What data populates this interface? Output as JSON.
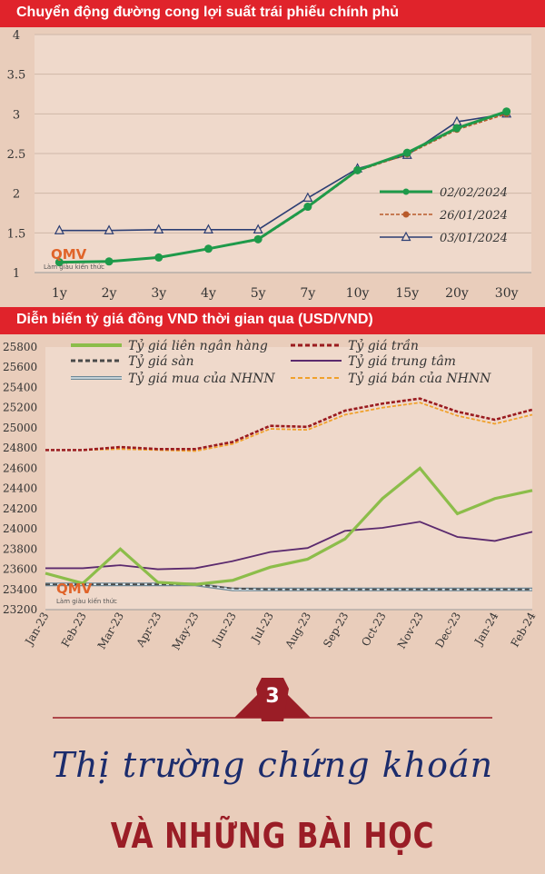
{
  "banner1": {
    "title": "Chuyển động đường cong lợi suất trái phiếu chính phủ"
  },
  "banner2": {
    "title": "Diễn biến tỷ giá đồng VND thời gian qua (USD/VND)"
  },
  "watermark": {
    "brand": "QMV",
    "tagline": "Làm giàu kiến thức"
  },
  "section3": {
    "number": "3",
    "title_script": "Thị trường chứng khoán",
    "title_caps": "VÀ NHỮNG BÀI HỌC"
  },
  "chart_data": [
    {
      "type": "line",
      "title": "Chuyển động đường cong lợi suất trái phiếu chính phủ",
      "categories": [
        "1y",
        "2y",
        "3y",
        "4y",
        "5y",
        "7y",
        "10y",
        "15y",
        "20y",
        "30y"
      ],
      "ylim": [
        1,
        4
      ],
      "yticks": [
        "1",
        "1.5",
        "2",
        "2.5",
        "3",
        "3.5",
        "4"
      ],
      "grid": true,
      "legend_position": "right",
      "series": [
        {
          "name": "02/02/2024",
          "color": "#1e9a4a",
          "marker": "circle",
          "style": "solid",
          "values": [
            1.13,
            1.14,
            1.19,
            1.3,
            1.42,
            1.83,
            2.29,
            2.51,
            2.82,
            3.03
          ]
        },
        {
          "name": "26/01/2024",
          "color": "#b85a2a",
          "marker": "circle",
          "style": "dashed",
          "values": [
            1.12,
            1.14,
            1.19,
            1.3,
            1.41,
            1.82,
            2.28,
            2.49,
            2.8,
            3.0
          ]
        },
        {
          "name": "03/01/2024",
          "color": "#2c3e73",
          "marker": "triangle",
          "style": "solid",
          "values": [
            1.53,
            1.53,
            1.54,
            1.54,
            1.54,
            1.94,
            2.31,
            2.48,
            2.9,
            3.0
          ]
        }
      ]
    },
    {
      "type": "line",
      "title": "Diễn biến tỷ giá đồng VND thời gian qua (USD/VND)",
      "categories": [
        "Jan-23",
        "Feb-23",
        "Mar-23",
        "Apr-23",
        "May-23",
        "Jun-23",
        "Jul-23",
        "Aug-23",
        "Sep-23",
        "Oct-23",
        "Nov-23",
        "Dec-23",
        "Jan-24",
        "Feb-24"
      ],
      "ylim": [
        23200,
        25800
      ],
      "yticks": [
        "23200",
        "23400",
        "23600",
        "23800",
        "24000",
        "24200",
        "24400",
        "24600",
        "24800",
        "25000",
        "25200",
        "25400",
        "25600",
        "25800"
      ],
      "legend_position": "top",
      "series": [
        {
          "name": "Tỷ giá liên ngân hàng",
          "color": "#8cbd4a",
          "style": "thick",
          "values": [
            23560,
            23460,
            23800,
            23470,
            23450,
            23490,
            23620,
            23700,
            23900,
            24300,
            24600,
            24150,
            24300,
            24380
          ]
        },
        {
          "name": "Tỷ giá trần",
          "color": "#9a1b1f",
          "style": "dashed",
          "values": [
            24780,
            24780,
            24810,
            24790,
            24790,
            24860,
            25020,
            25010,
            25170,
            25240,
            25290,
            25160,
            25080,
            25180
          ]
        },
        {
          "name": "Tỷ giá sàn",
          "color": "#4a4a4a",
          "style": "dashed",
          "values": [
            23450,
            23450,
            23450,
            23450,
            23450,
            23410,
            23400,
            23400,
            23400,
            23400,
            23400,
            23400,
            23400,
            23400
          ]
        },
        {
          "name": "Tỷ giá trung tâm",
          "color": "#5b2a6e",
          "style": "solid",
          "values": [
            23610,
            23610,
            23640,
            23600,
            23610,
            23680,
            23770,
            23810,
            23980,
            24010,
            24070,
            23920,
            23880,
            23970
          ]
        },
        {
          "name": "Tỷ giá mua của NHNN",
          "color": "#a0b3bd",
          "style": "double",
          "values": [
            23450,
            23450,
            23450,
            23450,
            23450,
            23400,
            23400,
            23400,
            23400,
            23400,
            23400,
            23400,
            23400,
            23400
          ]
        },
        {
          "name": "Tỷ giá bán của NHNN",
          "color": "#f0a12c",
          "style": "dashed",
          "values": [
            24780,
            24780,
            24790,
            24780,
            24770,
            24840,
            24990,
            24980,
            25130,
            25200,
            25250,
            25120,
            25040,
            25130
          ]
        }
      ]
    }
  ]
}
